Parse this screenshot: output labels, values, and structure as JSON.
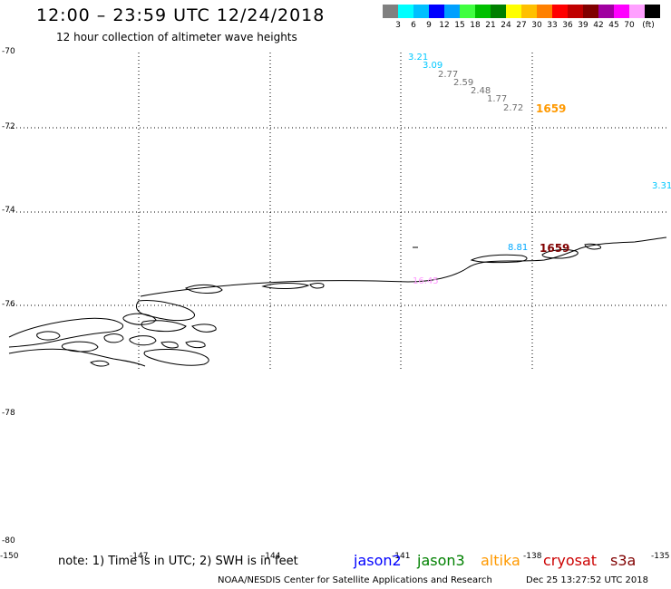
{
  "header": {
    "title": "12:00 – 23:59 UTC 12/24/2018",
    "subtitle": "12 hour collection of altimeter wave heights"
  },
  "colorbar": {
    "colors": [
      "#808080",
      "#00ffff",
      "#00c0ff",
      "#0000ff",
      "#00a0ff",
      "#40ff40",
      "#00c000",
      "#008000",
      "#ffff00",
      "#ffc000",
      "#ff8000",
      "#ff0000",
      "#c00000",
      "#800000",
      "#a000a0",
      "#ff00ff",
      "#ffa0ff",
      "#000000"
    ],
    "labels": [
      "3",
      "6",
      "9",
      "12",
      "15",
      "18",
      "21",
      "24",
      "27",
      "30",
      "33",
      "36",
      "39",
      "42",
      "45",
      "70",
      "(ft)"
    ]
  },
  "axes": {
    "lat_labels": [
      "-70",
      "-72",
      "-74",
      "-76",
      "-78",
      "-80"
    ],
    "lon_labels": [
      "-150",
      "-147",
      "-144",
      "-141",
      "-138",
      "-135"
    ]
  },
  "observations": [
    {
      "value": "3.21",
      "color": "#00c8ff"
    },
    {
      "value": "3.09",
      "color": "#00c8ff"
    },
    {
      "value": "2.77",
      "color": "#707070"
    },
    {
      "value": "2.59",
      "color": "#707070"
    },
    {
      "value": "2.48",
      "color": "#707070"
    },
    {
      "value": "1.77",
      "color": "#707070"
    },
    {
      "value": "2.72",
      "color": "#707070"
    },
    {
      "value": "1659",
      "color": "#ff9900"
    },
    {
      "value": "3.31",
      "color": "#00c8ff"
    },
    {
      "value": "8.81",
      "color": "#00a8ff"
    },
    {
      "value": "1659",
      "color": "#800000"
    },
    {
      "value": "16.45",
      "color": "#ff99ff"
    }
  ],
  "footer": {
    "note": "note: 1) Time is in UTC; 2) SWH is in feet",
    "satellites": [
      {
        "name": "jason2",
        "color": "#0000ff"
      },
      {
        "name": "jason3",
        "color": "#008000"
      },
      {
        "name": "altika",
        "color": "#ff9900"
      },
      {
        "name": "cryosat",
        "color": "#cc0000"
      },
      {
        "name": "s3a",
        "color": "#800000"
      }
    ],
    "credit": "NOAA/NESDIS Center for Satellite Applications and Research",
    "timestamp": "Dec 25 13:27:52 UTC 2018"
  }
}
